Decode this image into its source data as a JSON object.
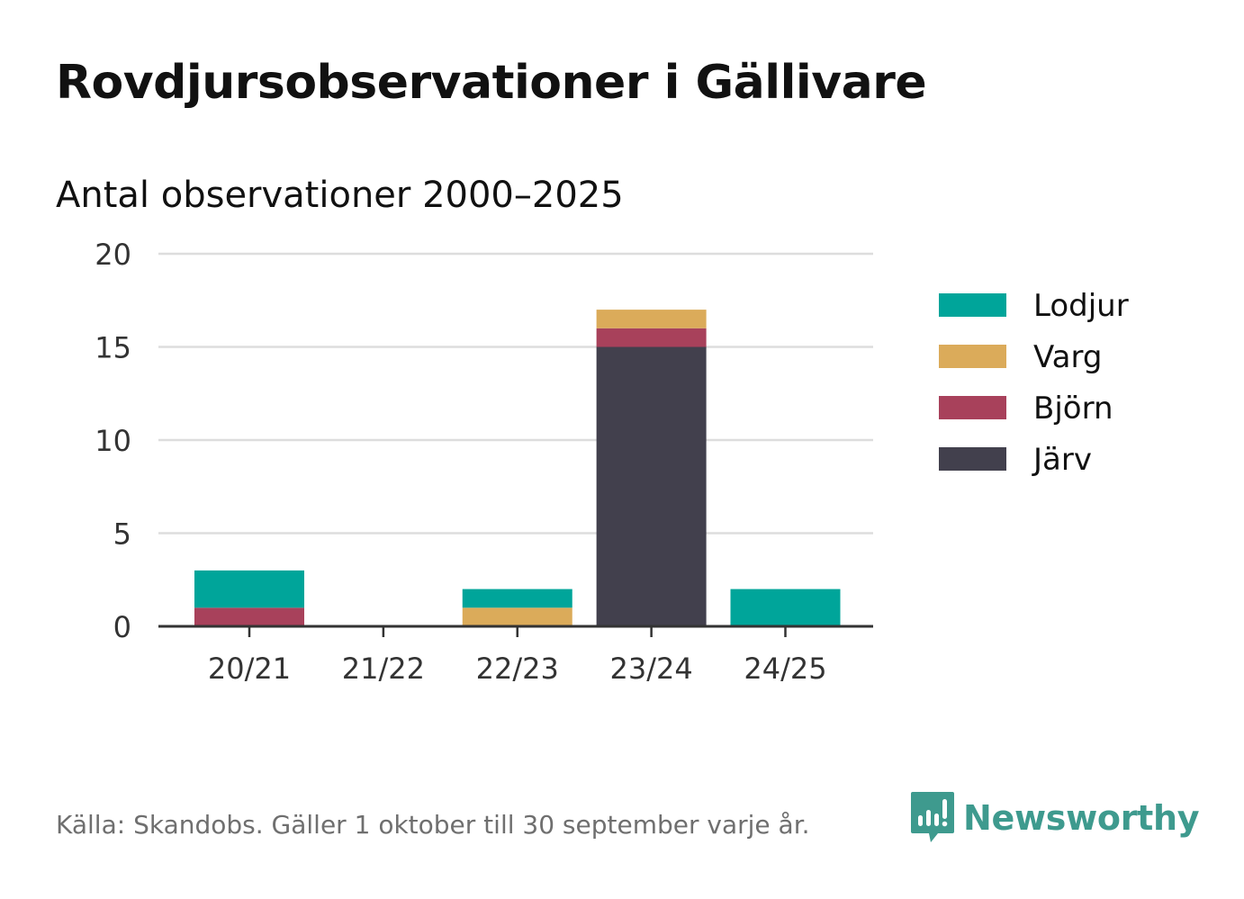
{
  "chart_data": {
    "type": "bar",
    "stacked": true,
    "title": "Rovdjursobservationer i Gällivare",
    "subtitle": "Antal observationer 2000–2025",
    "categories": [
      "20/21",
      "21/22",
      "22/23",
      "23/24",
      "24/25"
    ],
    "series": [
      {
        "name": "Järv",
        "color": "#42404d",
        "values": [
          0,
          0,
          0,
          15,
          0
        ]
      },
      {
        "name": "Björn",
        "color": "#a8415b",
        "values": [
          1,
          0,
          0,
          1,
          0
        ]
      },
      {
        "name": "Varg",
        "color": "#dbab5a",
        "values": [
          0,
          0,
          1,
          1,
          0
        ]
      },
      {
        "name": "Lodjur",
        "color": "#00a59a",
        "values": [
          2,
          0,
          1,
          0,
          2
        ]
      }
    ],
    "legend_order": [
      "Lodjur",
      "Varg",
      "Björn",
      "Järv"
    ],
    "yticks": [
      0,
      5,
      10,
      15,
      20
    ],
    "ylim": [
      0,
      20
    ],
    "xlabel": "",
    "ylabel": "",
    "grid": true,
    "legend_position": "right"
  },
  "footer": {
    "source": "Källa: Skandobs. Gäller 1 oktober till 30 september varje år.",
    "brand": "Newsworthy"
  },
  "colors": {
    "brand": "#3e9a8e",
    "grid": "#dddddd",
    "axis": "#333333"
  },
  "icons": {
    "brand_logo": "bar-chart-speech-bubble-icon"
  }
}
